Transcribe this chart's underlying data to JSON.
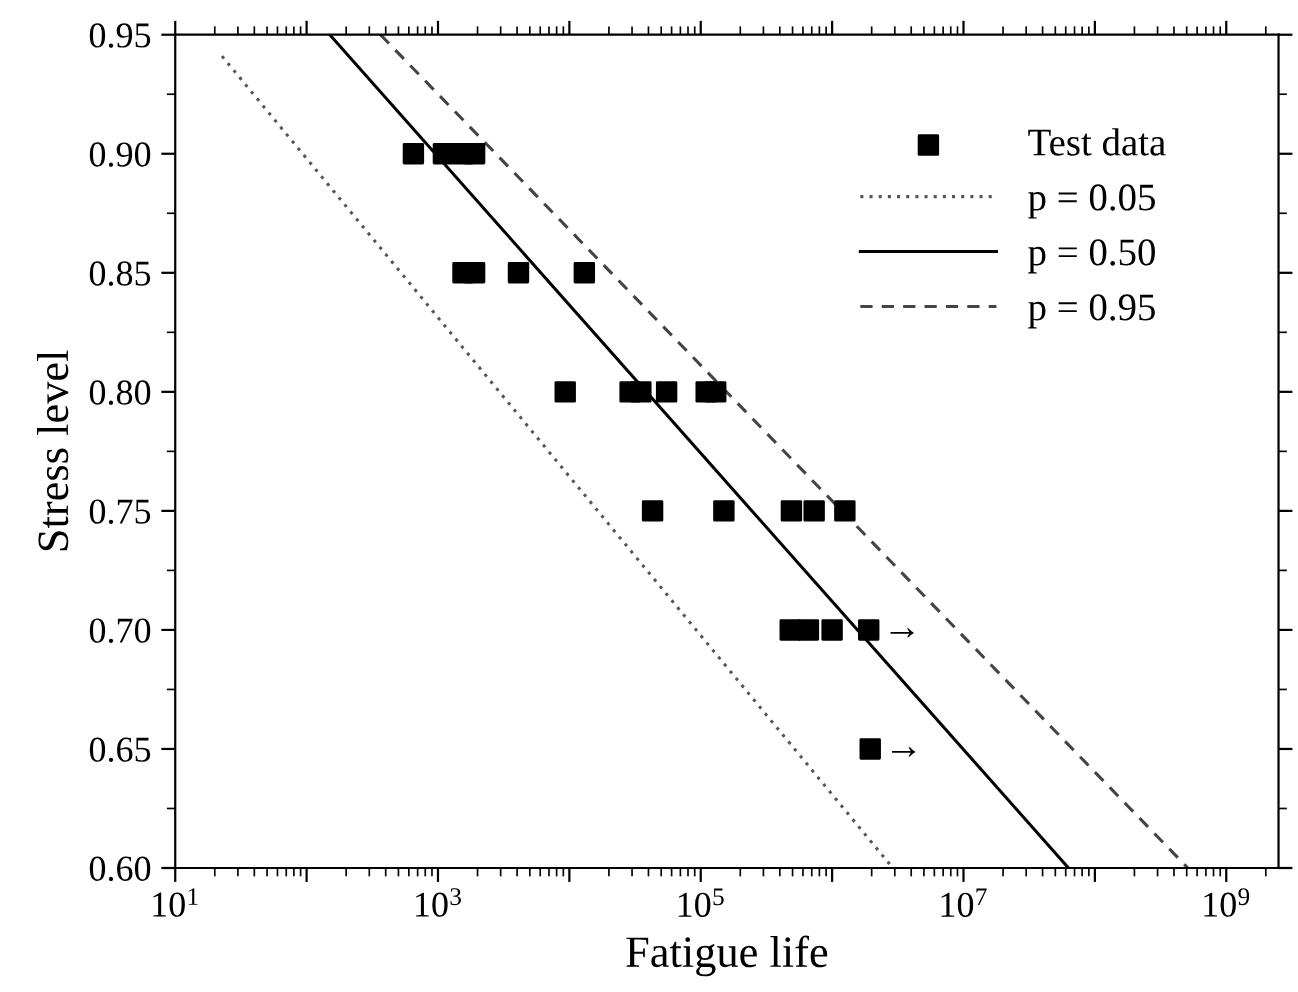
{
  "chart_data": {
    "type": "scatter",
    "xlabel": "Fatigue life",
    "ylabel": "Stress level",
    "log": "x",
    "xlim": [
      10,
      2500000000
    ],
    "xticks": [
      {
        "value": 10,
        "label": "10$^{1}$"
      },
      {
        "value": 100,
        "label": null
      },
      {
        "value": 1000,
        "label": "10$^{3}$"
      },
      {
        "value": 10000,
        "label": null
      },
      {
        "value": 100000,
        "label": "10$^{5}$"
      },
      {
        "value": 1000000,
        "label": null
      },
      {
        "value": 10000000,
        "label": "10$^{7}$"
      },
      {
        "value": 100000000,
        "label": null
      },
      {
        "value": 1000000000,
        "label": "10$^{9}$"
      }
    ],
    "ylim": [
      0.6,
      0.95
    ],
    "yticks": [
      {
        "value": 0.6,
        "label": "0.60"
      },
      {
        "value": 0.65,
        "label": "0.65"
      },
      {
        "value": 0.7,
        "label": "0.70"
      },
      {
        "value": 0.75,
        "label": "0.75"
      },
      {
        "value": 0.8,
        "label": "0.80"
      },
      {
        "value": 0.85,
        "label": "0.85"
      },
      {
        "value": 0.9,
        "label": "0.90"
      },
      {
        "value": 0.95,
        "label": "0.95"
      }
    ],
    "grid": false,
    "legend": "top right",
    "series": [
      {
        "name": "Test data",
        "marker": "square",
        "color": "#000000",
        "x": [
          650,
          1100,
          1550,
          1900,
          1550,
          1900,
          4100,
          13000,
          9300,
          29000,
          35000,
          55000,
          110000,
          130000,
          43000,
          150000,
          490000,
          730000,
          1250000,
          480000,
          660000,
          1000000,
          1900000,
          1950000
        ],
        "values": [
          0.9,
          0.9,
          0.9,
          0.9,
          0.85,
          0.85,
          0.85,
          0.85,
          0.8,
          0.8,
          0.8,
          0.8,
          0.8,
          0.8,
          0.75,
          0.75,
          0.75,
          0.75,
          0.75,
          0.7,
          0.7,
          0.7,
          0.7,
          0.65
        ]
      },
      {
        "name": "p = 0.05",
        "type": "line",
        "line_style": "dotted",
        "color": "#555555",
        "x": [
          22.7,
          2900000
        ],
        "values": [
          0.941,
          0.6
        ]
      },
      {
        "name": "p = 0.50",
        "type": "line",
        "line_style": "solid",
        "color": "#000000",
        "x": [
          150,
          63000000
        ],
        "values": [
          0.95,
          0.6
        ]
      },
      {
        "name": "p = 0.95",
        "type": "line",
        "line_style": "dashed",
        "color": "#444444",
        "x": [
          365,
          510000000
        ],
        "values": [
          0.95,
          0.6
        ]
      }
    ],
    "annotations": [
      {
        "text": "→",
        "x": 1900000,
        "y": 0.7
      },
      {
        "text": "→",
        "x": 1950000,
        "y": 0.65
      }
    ]
  }
}
